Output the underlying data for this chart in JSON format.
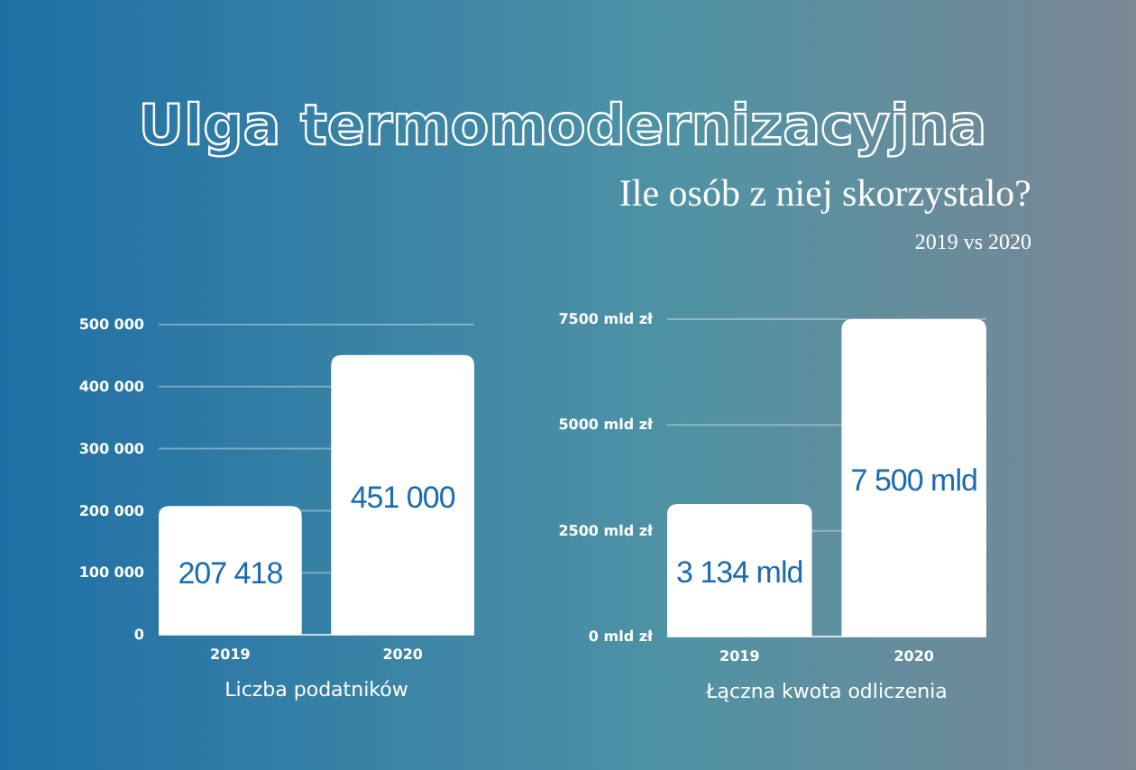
{
  "chart_data": [
    {
      "type": "bar",
      "title": "Ulga termomodernizacyjna",
      "xlabel": "Liczba podatników",
      "categories": [
        "2019",
        "2020"
      ],
      "values": [
        207418,
        451000
      ],
      "color": "#ffffff",
      "value_labels": [
        "207 418",
        "451 000"
      ],
      "ylim": [
        0,
        500000
      ],
      "yticks": [
        {
          "value": 0,
          "label": "0"
        },
        {
          "value": 100000,
          "label": "100 000"
        },
        {
          "value": 200000,
          "label": "200 000"
        },
        {
          "value": 300000,
          "label": "300 000"
        },
        {
          "value": 400000,
          "label": "400 000"
        },
        {
          "value": 500000,
          "label": "500 000"
        }
      ],
      "grid": "y"
    },
    {
      "type": "bar",
      "subtitle": "Ile osób z niej skorzystalo?",
      "annotations": [
        "2019 vs 2020"
      ],
      "xlabel": "Łączna kwota odliczenia",
      "categories": [
        "2019",
        "2020"
      ],
      "values": [
        3134,
        7500
      ],
      "color": "#ffffff",
      "value_labels": [
        "3 134 mld",
        "7 500 mld"
      ],
      "ylim": [
        0,
        7500
      ],
      "yticks": [
        {
          "value": 0,
          "label": "0 mld zł"
        },
        {
          "value": 2500,
          "label": "2500 mld zł"
        },
        {
          "value": 5000,
          "label": "5000 mld zł"
        },
        {
          "value": 7500,
          "label": "7500 mld zł"
        }
      ],
      "grid": "y"
    }
  ]
}
